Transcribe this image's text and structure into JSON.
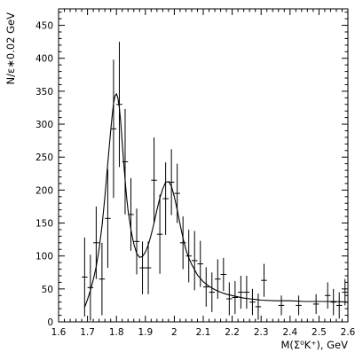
{
  "chart_data": {
    "type": "scatter",
    "title": "",
    "xlabel": "M(Σ⁰K⁺),  GeV",
    "ylabel": "N/ε∗0.02 GeV",
    "xlim": [
      1.6,
      2.6
    ],
    "ylim": [
      0,
      475
    ],
    "x_ticks": [
      1.6,
      1.7,
      1.8,
      1.9,
      2.0,
      2.1,
      2.2,
      2.3,
      2.4,
      2.5,
      2.6
    ],
    "x_tick_labels": [
      "1.6",
      "1.7",
      "1.8",
      "1.9",
      "2",
      "2.1",
      "2.2",
      "2.3",
      "2.4",
      "2.5",
      "2.6"
    ],
    "y_ticks": [
      0,
      50,
      100,
      150,
      200,
      250,
      300,
      350,
      400,
      450
    ],
    "y_tick_labels": [
      "0",
      "50",
      "100",
      "150",
      "200",
      "250",
      "300",
      "350",
      "400",
      "450"
    ],
    "grid": false,
    "legend": "none",
    "series": [
      {
        "type": "errorbar",
        "x_bin_halfwidth": 0.01,
        "points": [
          {
            "x": 1.69,
            "y": 68,
            "err": 60
          },
          {
            "x": 1.71,
            "y": 52,
            "err": 50
          },
          {
            "x": 1.73,
            "y": 120,
            "err": 55
          },
          {
            "x": 1.75,
            "y": 65,
            "err": 55
          },
          {
            "x": 1.77,
            "y": 157,
            "err": 75
          },
          {
            "x": 1.79,
            "y": 293,
            "err": 105
          },
          {
            "x": 1.81,
            "y": 330,
            "err": 95
          },
          {
            "x": 1.83,
            "y": 243,
            "err": 80
          },
          {
            "x": 1.85,
            "y": 163,
            "err": 55
          },
          {
            "x": 1.87,
            "y": 122,
            "err": 50
          },
          {
            "x": 1.89,
            "y": 82,
            "err": 40
          },
          {
            "x": 1.91,
            "y": 82,
            "err": 40
          },
          {
            "x": 1.93,
            "y": 215,
            "err": 65
          },
          {
            "x": 1.95,
            "y": 133,
            "err": 60
          },
          {
            "x": 1.97,
            "y": 187,
            "err": 55
          },
          {
            "x": 1.99,
            "y": 212,
            "err": 50
          },
          {
            "x": 2.01,
            "y": 195,
            "err": 45
          },
          {
            "x": 2.03,
            "y": 120,
            "err": 40
          },
          {
            "x": 2.05,
            "y": 100,
            "err": 40
          },
          {
            "x": 2.07,
            "y": 93,
            "err": 45
          },
          {
            "x": 2.09,
            "y": 88,
            "err": 35
          },
          {
            "x": 2.11,
            "y": 53,
            "err": 30
          },
          {
            "x": 2.13,
            "y": 45,
            "err": 30
          },
          {
            "x": 2.15,
            "y": 65,
            "err": 30
          },
          {
            "x": 2.17,
            "y": 72,
            "err": 25
          },
          {
            "x": 2.19,
            "y": 35,
            "err": 25
          },
          {
            "x": 2.21,
            "y": 37,
            "err": 25
          },
          {
            "x": 2.23,
            "y": 45,
            "err": 25
          },
          {
            "x": 2.25,
            "y": 45,
            "err": 25
          },
          {
            "x": 2.27,
            "y": 30,
            "err": 20
          },
          {
            "x": 2.29,
            "y": 23,
            "err": 20
          },
          {
            "x": 2.31,
            "y": 63,
            "err": 25
          },
          {
            "x": 2.37,
            "y": 25,
            "err": 15
          },
          {
            "x": 2.43,
            "y": 25,
            "err": 15
          },
          {
            "x": 2.49,
            "y": 27,
            "err": 15
          },
          {
            "x": 2.53,
            "y": 40,
            "err": 20
          },
          {
            "x": 2.55,
            "y": 30,
            "err": 20
          },
          {
            "x": 2.57,
            "y": 25,
            "err": 20
          },
          {
            "x": 2.59,
            "y": 45,
            "err": 20
          }
        ]
      },
      {
        "type": "line",
        "x": [
          1.69,
          1.7,
          1.71,
          1.72,
          1.73,
          1.74,
          1.75,
          1.76,
          1.77,
          1.78,
          1.785,
          1.79,
          1.795,
          1.8,
          1.805,
          1.81,
          1.815,
          1.82,
          1.825,
          1.83,
          1.835,
          1.84,
          1.85,
          1.86,
          1.87,
          1.88,
          1.89,
          1.9,
          1.91,
          1.92,
          1.93,
          1.94,
          1.95,
          1.96,
          1.97,
          1.98,
          1.99,
          2.0,
          2.01,
          2.02,
          2.03,
          2.04,
          2.05,
          2.06,
          2.08,
          2.1,
          2.12,
          2.14,
          2.16,
          2.18,
          2.2,
          2.22,
          2.24,
          2.26,
          2.28,
          2.3,
          2.35,
          2.4,
          2.45,
          2.5,
          2.55,
          2.6
        ],
        "y": [
          22,
          34,
          48,
          64,
          84,
          110,
          145,
          190,
          240,
          290,
          312,
          331,
          343,
          346,
          340,
          325,
          302,
          272,
          243,
          215,
          190,
          170,
          140,
          118,
          104,
          98,
          99,
          106,
          117,
          132,
          150,
          170,
          188,
          202,
          212,
          213,
          206,
          190,
          170,
          148,
          127,
          110,
          97,
          87,
          71,
          61,
          54,
          49,
          45,
          42,
          40,
          38,
          36,
          35,
          34,
          33,
          32,
          32,
          31,
          31,
          31,
          30
        ]
      }
    ]
  }
}
